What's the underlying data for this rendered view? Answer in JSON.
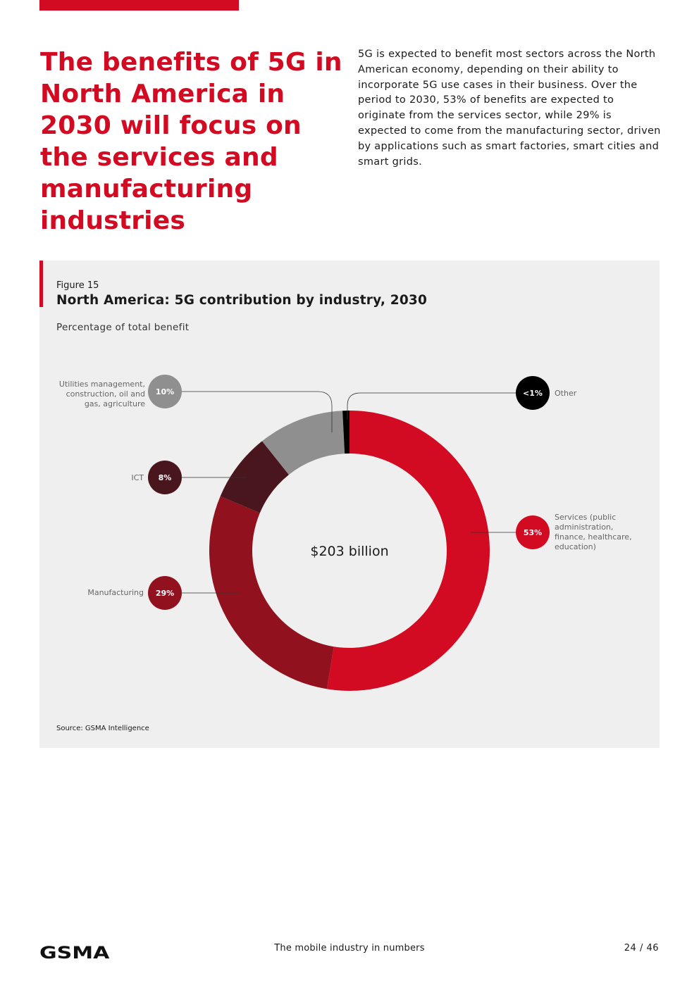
{
  "headline": "The benefits of 5G in North America in 2030 will focus on the services and manufacturing industries",
  "intro": "5G is expected to benefit most sectors across the North American economy, depending on their ability to incorporate 5G use cases in their business. Over the period to 2030, 53% of benefits are expected to originate from the services sector, while 29% is expected to come from the manufacturing sector, driven by applications such as smart factories, smart cities and smart grids.",
  "figure": {
    "label": "Figure 15",
    "title": "North America: 5G contribution by industry, 2030",
    "subtitle": "Percentage of total benefit",
    "source": "Source: GSMA Intelligence"
  },
  "chart_data": {
    "type": "pie",
    "variant": "donut",
    "title": "North America: 5G contribution by industry, 2030",
    "subtitle": "Percentage of total benefit",
    "center_label": "$203 billion",
    "slices": [
      {
        "name": "Services (public administration, finance, healthcare, education)",
        "label_lines": [
          "Services (public",
          "administration,",
          "finance, healthcare,",
          "education)"
        ],
        "value": 53,
        "display": "53%",
        "color": "#d20a22",
        "side": "right"
      },
      {
        "name": "Manufacturing",
        "label_lines": [
          "Manufacturing"
        ],
        "value": 29,
        "display": "29%",
        "color": "#92111f",
        "side": "left"
      },
      {
        "name": "ICT",
        "label_lines": [
          "ICT"
        ],
        "value": 8,
        "display": "8%",
        "color": "#4a161d",
        "side": "left"
      },
      {
        "name": "Utilities management, construction, oil and gas, agriculture",
        "label_lines": [
          "Utilities management,",
          "construction, oil and",
          "gas, agriculture"
        ],
        "value": 10,
        "display": "10%",
        "color": "#8f8f8f",
        "side": "left"
      },
      {
        "name": "Other",
        "label_lines": [
          "Other"
        ],
        "value": 0.8,
        "display": "<1%",
        "color": "#000000",
        "side": "right"
      }
    ]
  },
  "footer": {
    "logo": "GSMA",
    "center": "The mobile industry in numbers",
    "page": "24 / 46"
  },
  "colors": {
    "brand_red": "#d20a22",
    "panel_bg": "#efefef"
  }
}
